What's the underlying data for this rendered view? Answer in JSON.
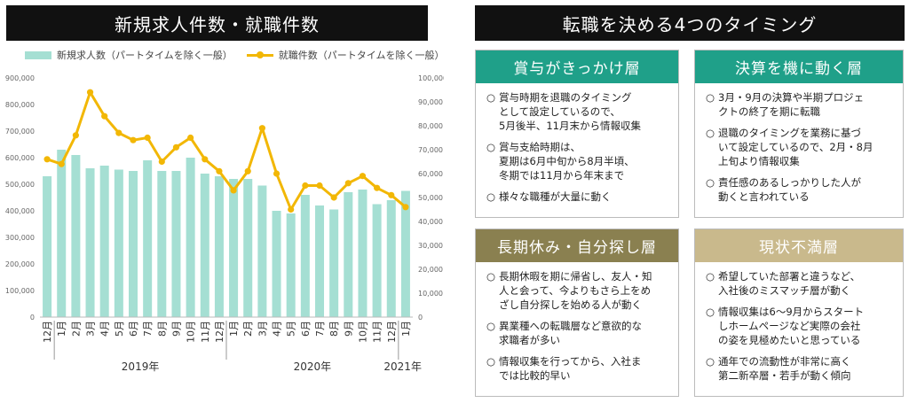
{
  "left_title": "新規求人件数・就職件数",
  "right_title": "転職を決める4つのタイミング",
  "legend": {
    "bar": "新規求人数（パートタイムを除く一般）",
    "line": "就職件数（パートタイムを除く一般）"
  },
  "colors": {
    "bar": "#a5dfd3",
    "line": "#f2b705",
    "teal": "#1fa089",
    "olive": "#8a8050",
    "khaki": "#c9b98c"
  },
  "chart_data": {
    "type": "bar",
    "categories": [
      "12月",
      "1月",
      "2月",
      "3月",
      "4月",
      "5月",
      "6月",
      "7月",
      "8月",
      "9月",
      "10月",
      "11月",
      "12月",
      "1月",
      "2月",
      "3月",
      "4月",
      "5月",
      "6月",
      "7月",
      "8月",
      "9月",
      "10月",
      "11月",
      "12月",
      "1月"
    ],
    "year_labels": [
      "2019年",
      "2020年",
      "2021年"
    ],
    "series": [
      {
        "name": "新規求人数（パートタイムを除く一般）",
        "type": "bar",
        "axis": "left",
        "values": [
          530000,
          630000,
          610000,
          560000,
          570000,
          555000,
          550000,
          590000,
          550000,
          550000,
          600000,
          540000,
          530000,
          520000,
          520000,
          495000,
          400000,
          390000,
          460000,
          420000,
          405000,
          470000,
          480000,
          425000,
          440000,
          475000
        ]
      },
      {
        "name": "就職件数（パートタイムを除く一般）",
        "type": "line",
        "axis": "right",
        "values": [
          66000,
          64000,
          76000,
          94000,
          84000,
          77000,
          74000,
          75000,
          65000,
          71000,
          75000,
          66000,
          61000,
          53000,
          61000,
          79000,
          60000,
          45000,
          55000,
          55000,
          50000,
          56000,
          59000,
          54000,
          51000,
          46000
        ]
      }
    ],
    "left_axis": {
      "ticks": [
        "0",
        "100,000",
        "200,000",
        "300,000",
        "400,000",
        "500,000",
        "600,000",
        "700,000",
        "800,000",
        "900,000"
      ],
      "ylim": [
        0,
        900000
      ]
    },
    "right_axis": {
      "ticks": [
        "0",
        "10,000",
        "20,000",
        "30,000",
        "40,000",
        "50,000",
        "60,000",
        "70,000",
        "80,000",
        "90,000",
        "100,000"
      ],
      "ylim": [
        0,
        100000
      ]
    }
  },
  "boxes": [
    {
      "title": "賞与がきっかけ層",
      "color": "teal",
      "items": [
        "賞与時期を退職のタイミング\nとして設定しているので、\n5月後半、11月末から情報収集",
        "賞与支給時期は、\n夏期は6月中旬から8月半頃、\n冬期では11月から年末まで",
        "様々な職種が大量に動く"
      ]
    },
    {
      "title": "決算を機に動く層",
      "color": "teal",
      "items": [
        "3月・9月の決算や半期プロジェ\nクトの終了を期に転職",
        "退職のタイミングを業務に基づ\nいて設定しているので、2月・8月\n上旬より情報収集",
        "責任感のあるしっかりした人が\n動くと言われている"
      ]
    },
    {
      "title": "長期休み・自分探し層",
      "color": "olive",
      "items": [
        "長期休暇を期に帰省し、友人・知\n人と会って、今よりもさら上をめ\nざし自分探しを始める人が動く",
        "異業種への転職層など意欲的な\n求職者が多い",
        "情報収集を行ってから、入社ま\nでは比較的早い"
      ]
    },
    {
      "title": "現状不満層",
      "color": "khaki",
      "items": [
        "希望していた部署と違うなど、\n入社後のミスマッチ層が動く",
        "情報収集は6～9月からスタート\nしホームページなど実際の会社\nの姿を見極めたいと思っている",
        "通年での流動性が非常に高く\n第二新卒層・若手が動く傾向"
      ]
    }
  ]
}
